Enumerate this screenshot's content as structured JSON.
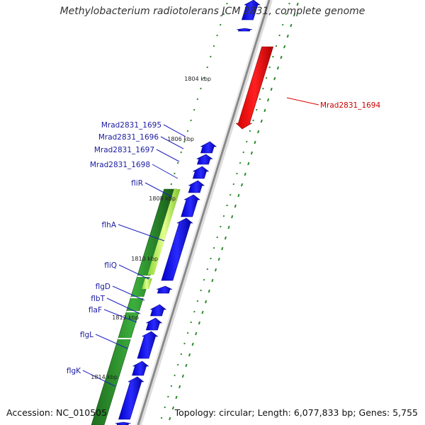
{
  "title": "Methylobacterium radiotolerans JCM 2831, complete genome",
  "footer": {
    "accession": "Accession: NC_010505",
    "summary": "Topology: circular; Length: 6,077,833 bp; Genes: 5,755"
  },
  "ticks": [
    "1804 kbp",
    "1806 kbp",
    "1808 kbp",
    "1810 kbp",
    "1812 kbp",
    "1814 kbp"
  ],
  "genes_minus": [
    "Mrad2831_1695",
    "Mrad2831_1696",
    "Mrad2831_1697",
    "Mrad2831_1698",
    "fliR",
    "flhA",
    "fliQ",
    "flgD",
    "flbT",
    "flaF",
    "flgL",
    "flgK"
  ],
  "genes_plus": [
    "Mrad2831_1694"
  ],
  "colors": {
    "forward_gene": "#ff0000",
    "reverse_gene": "#0000ff",
    "gene_cluster": "#228b22",
    "gene_cluster_highlight": "#c8f068",
    "backbone": "#888888",
    "dots": "#2e8b2e",
    "label_blue": "#1a1aa0",
    "label_red": "#cc0000"
  }
}
